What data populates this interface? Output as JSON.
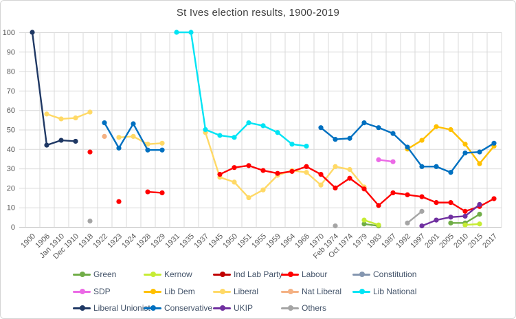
{
  "chart_data": {
    "type": "line",
    "title": "St Ives election results, 1900-2019",
    "xlabel": "",
    "ylabel": "",
    "ylim": [
      0,
      100
    ],
    "yticks": [
      0,
      10,
      20,
      30,
      40,
      50,
      60,
      70,
      80,
      90,
      100
    ],
    "grid": true,
    "legend_position": "bottom",
    "categories": [
      "1900",
      "1906",
      "Jan 1910",
      "Dec 1910",
      "1918",
      "1922",
      "1923",
      "1924",
      "1928",
      "1929",
      "1931",
      "1935",
      "1937",
      "1945",
      "1950",
      "1951",
      "1955",
      "1959",
      "1964",
      "1966",
      "1970",
      "Feb 1974",
      "Oct 1974",
      "1979",
      "1983",
      "1987",
      "1992",
      "1997",
      "2001",
      "2005",
      "2010",
      "2015",
      "2017"
    ],
    "series": [
      {
        "name": "Green",
        "color": "#70AD47",
        "values": [
          null,
          null,
          null,
          null,
          null,
          null,
          null,
          null,
          null,
          null,
          null,
          null,
          null,
          null,
          null,
          null,
          null,
          null,
          null,
          null,
          null,
          null,
          null,
          1.5,
          0.5,
          null,
          null,
          null,
          null,
          2,
          2,
          6.5,
          null
        ]
      },
      {
        "name": "Kernow",
        "color": "#C6EC34",
        "values": [
          null,
          null,
          null,
          null,
          null,
          null,
          null,
          null,
          null,
          null,
          null,
          null,
          null,
          null,
          null,
          null,
          null,
          null,
          null,
          null,
          null,
          null,
          null,
          3.5,
          1,
          null,
          null,
          null,
          null,
          null,
          1,
          1.5,
          null
        ]
      },
      {
        "name": "Ind Lab Party",
        "color": "#C00000",
        "values": [
          null,
          null,
          null,
          null,
          null,
          null,
          null,
          null,
          null,
          null,
          null,
          null,
          null,
          null,
          null,
          null,
          null,
          null,
          null,
          null,
          null,
          null,
          null,
          null,
          null,
          null,
          null,
          null,
          null,
          null,
          null,
          null,
          null
        ]
      },
      {
        "name": "Labour",
        "color": "#FF0000",
        "values": [
          null,
          null,
          null,
          null,
          38.5,
          null,
          13,
          null,
          18,
          17.5,
          null,
          null,
          null,
          27,
          30.5,
          31.5,
          29,
          27.5,
          28.5,
          31,
          27,
          20,
          25,
          19.5,
          11,
          17.5,
          16.5,
          15.5,
          12.5,
          12.5,
          8,
          10.5,
          14.5
        ]
      },
      {
        "name": "Constitution",
        "color": "#8496B0",
        "values": [
          null,
          null,
          null,
          null,
          null,
          null,
          null,
          null,
          null,
          null,
          null,
          null,
          null,
          null,
          null,
          null,
          null,
          null,
          null,
          null,
          null,
          null,
          null,
          null,
          null,
          null,
          null,
          null,
          null,
          null,
          null,
          null,
          null
        ]
      },
      {
        "name": "SDP",
        "color": "#EB69E6",
        "values": [
          null,
          null,
          null,
          null,
          null,
          null,
          null,
          null,
          null,
          null,
          null,
          null,
          null,
          null,
          null,
          null,
          null,
          null,
          null,
          null,
          null,
          null,
          null,
          null,
          34.5,
          33.5,
          null,
          null,
          null,
          null,
          null,
          null,
          null
        ]
      },
      {
        "name": "Lib Dem",
        "color": "#FFC000",
        "values": [
          null,
          null,
          null,
          null,
          null,
          null,
          null,
          null,
          null,
          null,
          null,
          null,
          null,
          null,
          null,
          null,
          null,
          null,
          null,
          null,
          null,
          null,
          null,
          null,
          null,
          null,
          40,
          44.5,
          51.5,
          50,
          42.5,
          32.5,
          41.5
        ]
      },
      {
        "name": "Liberal",
        "color": "#FFD966",
        "values": [
          null,
          58,
          55.5,
          56,
          59,
          null,
          46,
          46.5,
          42.5,
          43,
          null,
          null,
          48.5,
          25.5,
          23,
          15,
          19,
          26.5,
          29,
          28,
          21.5,
          31,
          29.5,
          20.5,
          null,
          null,
          null,
          null,
          null,
          null,
          null,
          null,
          null
        ]
      },
      {
        "name": "Nat Liberal",
        "color": "#F4B183",
        "values": [
          null,
          null,
          null,
          null,
          null,
          46.5,
          null,
          null,
          null,
          null,
          null,
          null,
          null,
          null,
          null,
          null,
          null,
          null,
          null,
          null,
          null,
          null,
          null,
          null,
          null,
          null,
          null,
          null,
          null,
          null,
          null,
          null,
          null
        ]
      },
      {
        "name": "Lib National",
        "color": "#00E4F4",
        "values": [
          null,
          null,
          null,
          null,
          null,
          null,
          null,
          null,
          null,
          null,
          100,
          100,
          50,
          47,
          46,
          53.5,
          52,
          48.5,
          42.5,
          41.5,
          null,
          null,
          null,
          null,
          null,
          null,
          null,
          null,
          null,
          null,
          null,
          null,
          null
        ]
      },
      {
        "name": "Liberal Unionist",
        "color": "#1F3864",
        "values": [
          100,
          42,
          44.5,
          44,
          null,
          null,
          null,
          null,
          null,
          null,
          null,
          null,
          null,
          null,
          null,
          null,
          null,
          null,
          null,
          null,
          null,
          null,
          null,
          null,
          null,
          null,
          null,
          null,
          null,
          null,
          null,
          null,
          null
        ]
      },
      {
        "name": "Conservative",
        "color": "#0070C0",
        "values": [
          null,
          null,
          null,
          null,
          null,
          53.5,
          40.5,
          53,
          39.5,
          39.5,
          null,
          null,
          null,
          null,
          null,
          null,
          null,
          null,
          null,
          null,
          51,
          45,
          45.5,
          53.5,
          51,
          48,
          41,
          31,
          31,
          28,
          38,
          38.5,
          43
        ]
      },
      {
        "name": "UKIP",
        "color": "#7030A0",
        "values": [
          null,
          null,
          null,
          null,
          null,
          null,
          null,
          null,
          null,
          null,
          null,
          null,
          null,
          null,
          null,
          null,
          null,
          null,
          null,
          null,
          null,
          null,
          null,
          null,
          null,
          null,
          null,
          0.5,
          3.5,
          5,
          5.5,
          11.5,
          null
        ]
      },
      {
        "name": "Others",
        "color": "#A5A5A5",
        "values": [
          null,
          null,
          null,
          null,
          3,
          null,
          null,
          null,
          null,
          null,
          null,
          null,
          null,
          null,
          null,
          null,
          null,
          null,
          null,
          null,
          null,
          0.5,
          null,
          null,
          0.5,
          null,
          2,
          8,
          null,
          null,
          1,
          null,
          null
        ]
      }
    ]
  }
}
